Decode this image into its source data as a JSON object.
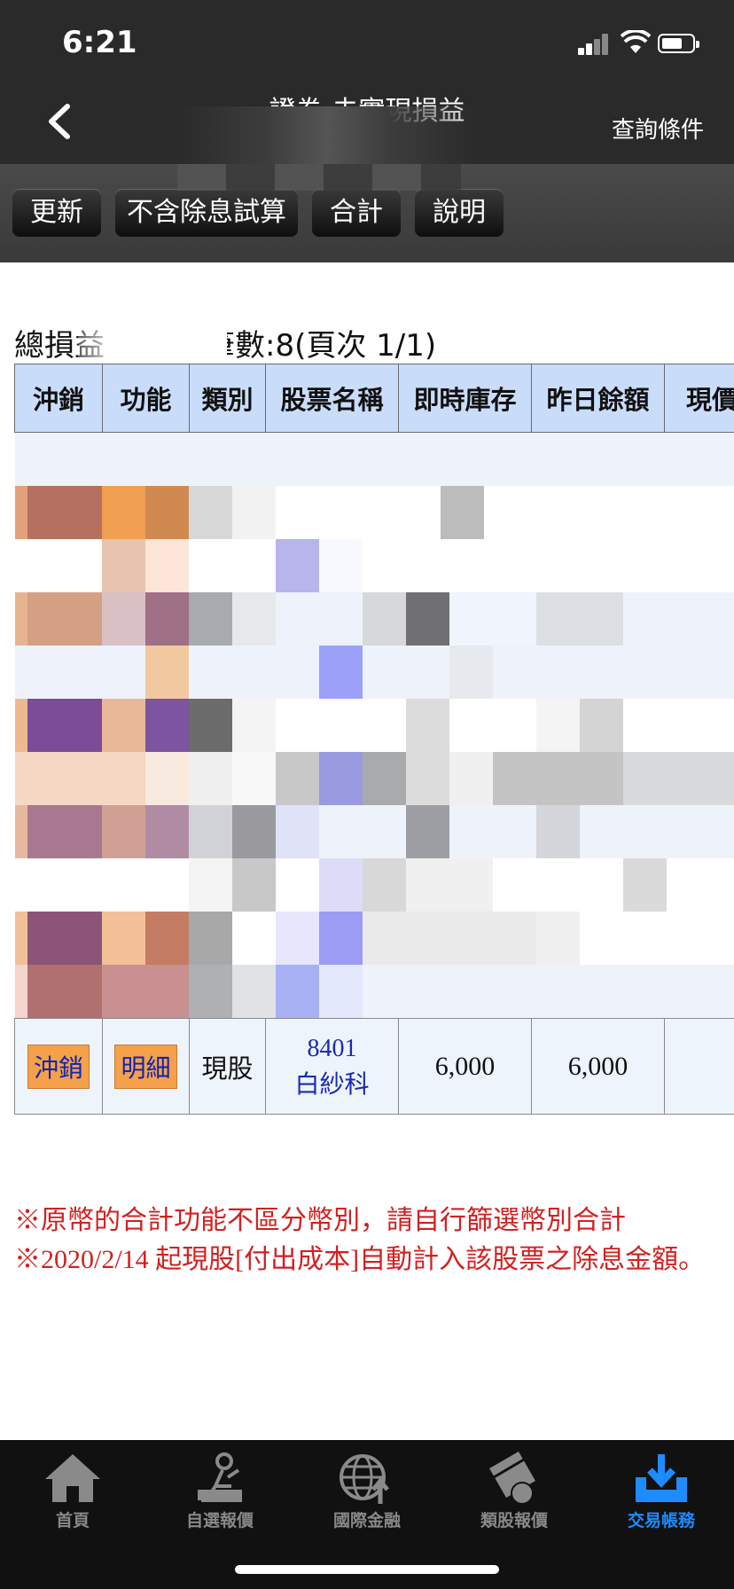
{
  "status": {
    "time": "6:21"
  },
  "nav": {
    "title": "證券-未實現損益",
    "right_label": "查詢條件"
  },
  "toolbar": {
    "refresh": "更新",
    "ex_dividend": "不含除息試算",
    "total": "合計",
    "help": "說明"
  },
  "summary": {
    "total_label": "總損益",
    "count_text": "筆數:8(頁次 1/1)"
  },
  "table": {
    "headers": [
      "沖銷",
      "功能",
      "類別",
      "股票名稱",
      "即時庫存",
      "昨日餘額",
      "現價"
    ],
    "last_row": {
      "action": "沖銷",
      "function": "明細",
      "kind": "現股",
      "stock_code": "8401",
      "stock_name": "白紗科",
      "realtime_stock": "6,000",
      "yesterday_balance": "6,000"
    }
  },
  "notes": [
    "※原幣的合計功能不區分幣別，請自行篩選幣別合計",
    "※2020/2/14 起現股[付出成本]自動計入該股票之除息金額。"
  ],
  "tabbar": {
    "items": [
      {
        "label": "首頁",
        "icon": "home-icon"
      },
      {
        "label": "自選報價",
        "icon": "person-desk-icon"
      },
      {
        "label": "國際金融",
        "icon": "globe-icon"
      },
      {
        "label": "類股報價",
        "icon": "film-coin-icon"
      },
      {
        "label": "交易帳務",
        "icon": "download-tray-icon"
      }
    ],
    "active_index": 4
  },
  "colors": {
    "header_bg": "#c9ddfb",
    "accent_orange": "#f5a04a",
    "note_red": "#d22020",
    "tab_active": "#1e8bff"
  }
}
